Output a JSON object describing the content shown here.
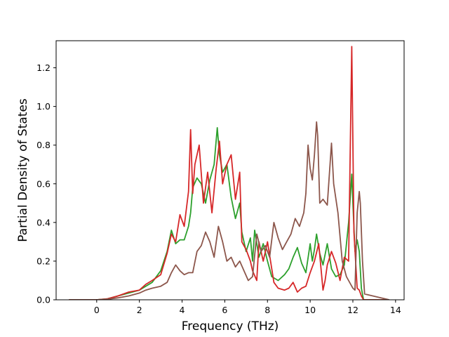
{
  "chart_data": {
    "type": "line",
    "title": "",
    "xlabel": "Frequency (THz)",
    "ylabel": "Partial Density of States",
    "xlim": [
      -1.9,
      14.4
    ],
    "ylim": [
      0.0,
      1.34
    ],
    "xticks": [
      0,
      2,
      4,
      6,
      8,
      10,
      12,
      14
    ],
    "yticks": [
      0.0,
      0.2,
      0.4,
      0.6,
      0.8,
      1.0,
      1.2
    ],
    "xtick_labels": [
      "0",
      "2",
      "4",
      "6",
      "8",
      "10",
      "12",
      "14"
    ],
    "ytick_labels": [
      "0.0",
      "0.2",
      "0.4",
      "0.6",
      "0.8",
      "1.0",
      "1.2"
    ],
    "grid": false,
    "legend": "none",
    "series": [
      {
        "color": "#2ca02c",
        "x": [
          -1.3,
          0,
          0.5,
          1,
          1.5,
          2,
          2.3,
          2.6,
          3,
          3.3,
          3.5,
          3.7,
          3.9,
          4.1,
          4.3,
          4.4,
          4.5,
          4.7,
          4.9,
          5.1,
          5.3,
          5.5,
          5.65,
          5.75,
          5.9,
          6.1,
          6.3,
          6.5,
          6.7,
          6.8,
          7,
          7.2,
          7.3,
          7.4,
          7.6,
          7.8,
          8,
          8.2,
          8.5,
          8.8,
          9,
          9.2,
          9.4,
          9.6,
          9.8,
          10,
          10.1,
          10.2,
          10.3,
          10.45,
          10.6,
          10.8,
          11,
          11.2,
          11.4,
          11.6,
          11.8,
          11.95,
          12,
          12.1,
          12.2,
          12.3,
          12.4,
          12.5,
          12.6,
          13.7
        ],
        "y": [
          0,
          0,
          0.005,
          0.02,
          0.035,
          0.05,
          0.07,
          0.09,
          0.15,
          0.25,
          0.36,
          0.29,
          0.31,
          0.31,
          0.38,
          0.45,
          0.58,
          0.63,
          0.6,
          0.5,
          0.62,
          0.7,
          0.89,
          0.75,
          0.66,
          0.7,
          0.53,
          0.42,
          0.5,
          0.35,
          0.25,
          0.32,
          0.2,
          0.36,
          0.22,
          0.29,
          0.2,
          0.12,
          0.1,
          0.13,
          0.16,
          0.22,
          0.27,
          0.19,
          0.14,
          0.29,
          0.2,
          0.26,
          0.34,
          0.24,
          0.18,
          0.29,
          0.16,
          0.12,
          0.13,
          0.18,
          0.4,
          0.65,
          0.5,
          0.25,
          0.31,
          0.25,
          0.06,
          0,
          0,
          0
        ]
      },
      {
        "color": "#d62728",
        "x": [
          -1.3,
          0,
          0.5,
          1,
          1.5,
          2,
          2.3,
          2.6,
          3,
          3.3,
          3.5,
          3.7,
          3.9,
          4.1,
          4.3,
          4.4,
          4.5,
          4.6,
          4.8,
          5,
          5.2,
          5.4,
          5.6,
          5.75,
          5.9,
          6.1,
          6.3,
          6.5,
          6.7,
          6.8,
          7,
          7.2,
          7.3,
          7.5,
          7.6,
          7.8,
          8,
          8.3,
          8.5,
          8.8,
          9,
          9.2,
          9.4,
          9.6,
          9.8,
          10,
          10.2,
          10.4,
          10.6,
          10.7,
          10.8,
          11,
          11.2,
          11.4,
          11.6,
          11.8,
          11.95,
          12.05,
          12.2,
          12.3,
          12.4,
          12.5,
          12.6,
          13.7
        ],
        "y": [
          0,
          0,
          0.005,
          0.02,
          0.04,
          0.05,
          0.08,
          0.1,
          0.13,
          0.24,
          0.34,
          0.3,
          0.44,
          0.38,
          0.56,
          0.88,
          0.55,
          0.7,
          0.8,
          0.5,
          0.66,
          0.45,
          0.68,
          0.82,
          0.6,
          0.7,
          0.75,
          0.52,
          0.66,
          0.3,
          0.26,
          0.2,
          0.15,
          0.1,
          0.3,
          0.2,
          0.3,
          0.09,
          0.06,
          0.05,
          0.06,
          0.09,
          0.04,
          0.06,
          0.07,
          0.14,
          0.2,
          0.29,
          0.05,
          0.1,
          0.18,
          0.25,
          0.19,
          0.1,
          0.22,
          0.2,
          1.31,
          0.35,
          0.06,
          0.05,
          0.02,
          0,
          0,
          0
        ]
      },
      {
        "color": "#8c564b",
        "x": [
          -1.3,
          0,
          0.5,
          1,
          1.5,
          2,
          2.3,
          2.6,
          3,
          3.3,
          3.5,
          3.7,
          3.9,
          4.1,
          4.3,
          4.5,
          4.7,
          4.9,
          5.1,
          5.3,
          5.5,
          5.7,
          5.9,
          6.1,
          6.3,
          6.5,
          6.7,
          6.9,
          7.1,
          7.3,
          7.5,
          7.7,
          7.9,
          8.1,
          8.3,
          8.5,
          8.7,
          8.9,
          9.1,
          9.3,
          9.5,
          9.7,
          9.8,
          9.9,
          10,
          10.1,
          10.2,
          10.3,
          10.35,
          10.45,
          10.6,
          10.8,
          11,
          11.1,
          11.3,
          11.5,
          11.7,
          11.9,
          12,
          12.1,
          12.2,
          12.3,
          12.35,
          12.45,
          12.55,
          13.7
        ],
        "y": [
          0,
          0,
          0.003,
          0.01,
          0.02,
          0.035,
          0.05,
          0.06,
          0.07,
          0.09,
          0.14,
          0.18,
          0.15,
          0.13,
          0.14,
          0.14,
          0.25,
          0.28,
          0.35,
          0.3,
          0.22,
          0.38,
          0.3,
          0.2,
          0.22,
          0.17,
          0.2,
          0.15,
          0.1,
          0.12,
          0.34,
          0.25,
          0.28,
          0.22,
          0.4,
          0.32,
          0.26,
          0.3,
          0.34,
          0.42,
          0.38,
          0.45,
          0.55,
          0.8,
          0.68,
          0.62,
          0.75,
          0.92,
          0.85,
          0.5,
          0.52,
          0.49,
          0.81,
          0.6,
          0.45,
          0.2,
          0.12,
          0.08,
          0.06,
          0.05,
          0.45,
          0.56,
          0.5,
          0.2,
          0.03,
          0
        ]
      }
    ]
  }
}
